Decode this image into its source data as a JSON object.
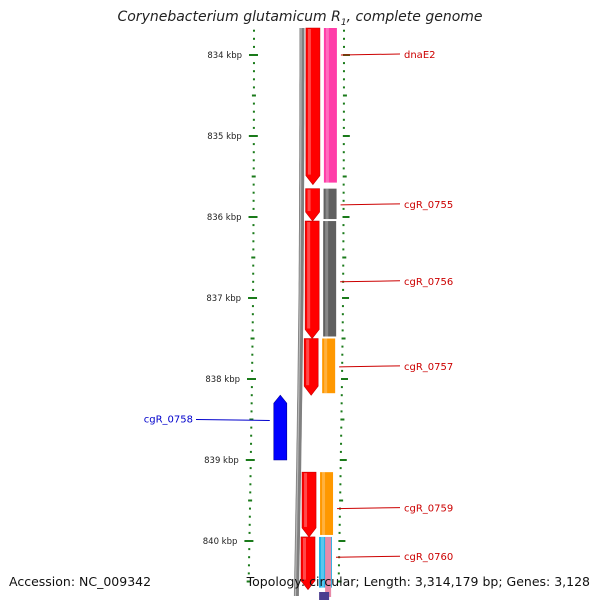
{
  "title": {
    "main": "Corynebacterium glutamicum R",
    "subscript": "1",
    "suffix": ", complete genome"
  },
  "footer": {
    "accession": "Accession: NC_009342",
    "topology": "Topology: circular; Length: 3,314,179 bp; Genes: 3,128"
  },
  "ruler": {
    "ticks": [
      {
        "kbp": 834,
        "label": "834 kbp"
      },
      {
        "kbp": 835,
        "label": "835 kbp"
      },
      {
        "kbp": 836,
        "label": "836 kbp"
      },
      {
        "kbp": 837,
        "label": "837 kbp"
      },
      {
        "kbp": 838,
        "label": "838 kbp"
      },
      {
        "kbp": 839,
        "label": "839 kbp"
      },
      {
        "kbp": 840,
        "label": "840 kbp"
      }
    ]
  },
  "colors": {
    "tick": "#1a7a1a",
    "backbone": "#808080",
    "gene_red": "#ff0000",
    "label_red": "#cc0000",
    "label_blue": "#0000cc",
    "pink": "#ff3da8",
    "darkgray": "#606060",
    "orange": "#ff9800",
    "blue": "#0000ff",
    "cyan": "#22b4e8"
  },
  "genes": [
    {
      "id": "dnaE2",
      "label": "dnaE2",
      "strand": "+",
      "start_kbp": 833.5,
      "end_kbp": 835.6,
      "track": "red",
      "annotation": "pink",
      "label_kbp": 834.0
    },
    {
      "id": "cgR_0755",
      "label": "cgR_0755",
      "strand": "+",
      "start_kbp": 835.65,
      "end_kbp": 836.05,
      "track": "red",
      "annotation": "darkgray",
      "label_kbp": 835.85
    },
    {
      "id": "cgR_0756",
      "label": "cgR_0756",
      "strand": "+",
      "start_kbp": 836.05,
      "end_kbp": 837.5,
      "track": "red",
      "annotation": "darkgray",
      "label_kbp": 836.8
    },
    {
      "id": "cgR_0757",
      "label": "cgR_0757",
      "strand": "+",
      "start_kbp": 837.5,
      "end_kbp": 838.2,
      "track": "red",
      "annotation": "orange",
      "label_kbp": 837.85
    },
    {
      "id": "cgR_0758",
      "label": "cgR_0758",
      "strand": "-",
      "start_kbp": 838.2,
      "end_kbp": 839.0,
      "track": "blue",
      "annotation": "blue",
      "label_kbp": 838.5
    },
    {
      "id": "cgR_0759",
      "label": "cgR_0759",
      "strand": "+",
      "start_kbp": 839.15,
      "end_kbp": 839.95,
      "track": "red",
      "annotation": "orange",
      "label_kbp": 839.6
    },
    {
      "id": "cgR_0760",
      "label": "cgR_0760",
      "strand": "+",
      "start_kbp": 839.95,
      "end_kbp": 840.6,
      "track": "red",
      "annotation": "cyan",
      "label_kbp": 840.2
    }
  ]
}
